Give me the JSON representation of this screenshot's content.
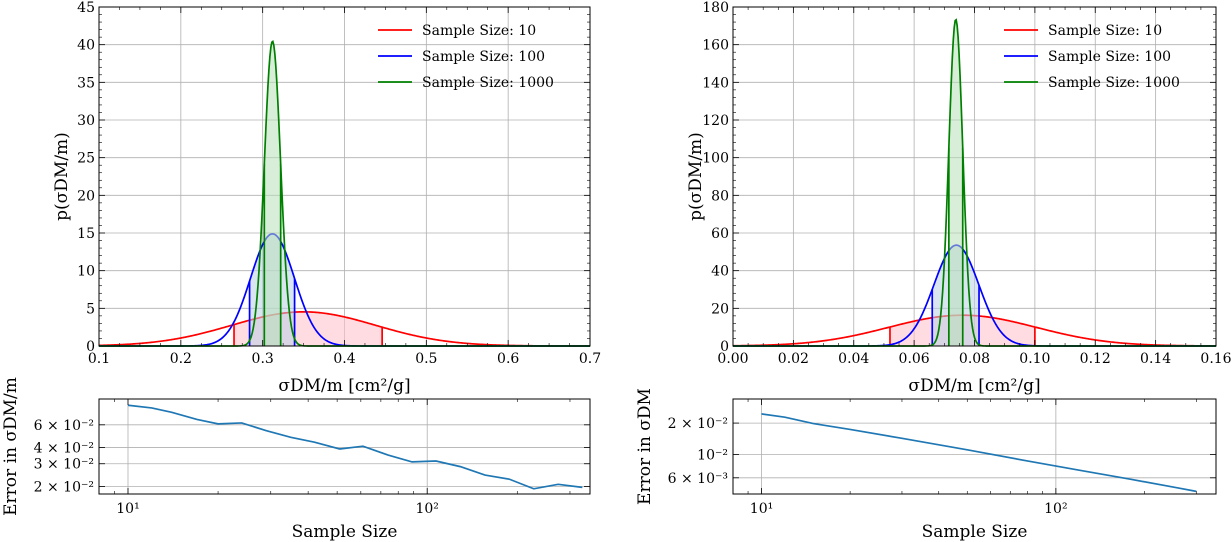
{
  "chart_data": [
    {
      "id": "left-top",
      "type": "line",
      "xlabel": "σDM/m [cm²/g]",
      "ylabel": "p(σDM/m)",
      "xlim": [
        0.1,
        0.7
      ],
      "ylim": [
        0,
        45
      ],
      "xticks": [
        "0.1",
        "0.2",
        "0.3",
        "0.4",
        "0.5",
        "0.6",
        "0.7"
      ],
      "yticks": [
        "0",
        "5",
        "10",
        "15",
        "20",
        "25",
        "30",
        "35",
        "40",
        "45"
      ],
      "grid": true,
      "legend_position": "top-right",
      "series": [
        {
          "name": "Sample Size: 10",
          "color": "#ff0000",
          "fill": "#ffc0c8",
          "mean": 0.35,
          "sd": 0.088,
          "ci": [
            0.265,
            0.446
          ]
        },
        {
          "name": "Sample Size: 100",
          "color": "#0000ff",
          "fill": "#bcd0e8",
          "mean": 0.312,
          "sd": 0.0268,
          "ci": [
            0.284,
            0.339
          ]
        },
        {
          "name": "Sample Size: 1000",
          "color": "#008000",
          "fill": "#b8e0b8",
          "mean": 0.312,
          "sd": 0.00986,
          "ci": [
            0.302,
            0.322
          ]
        }
      ]
    },
    {
      "id": "left-bottom",
      "type": "line",
      "xscale": "log",
      "yscale": "log",
      "xlabel": "Sample Size",
      "ylabel": "Error in σDM/m",
      "xlim": [
        8,
        350
      ],
      "ylim": [
        0.0175,
        0.095
      ],
      "xticks": [
        "10¹",
        "10²"
      ],
      "yticks": [
        "2 × 10⁻²",
        "3 × 10⁻²",
        "4 × 10⁻²",
        "6 × 10⁻²"
      ],
      "grid": true,
      "series": [
        {
          "name": "error",
          "color": "#1f77b4",
          "x": [
            10,
            12,
            14,
            17,
            20,
            24,
            29,
            35,
            42,
            51,
            61,
            74,
            89,
            107,
            129,
            156,
            188,
            227,
            274,
            330
          ],
          "y": [
            0.085,
            0.081,
            0.075,
            0.066,
            0.061,
            0.062,
            0.054,
            0.048,
            0.044,
            0.039,
            0.041,
            0.035,
            0.031,
            0.0315,
            0.0285,
            0.0245,
            0.0228,
            0.0192,
            0.0208,
            0.0197
          ]
        }
      ]
    },
    {
      "id": "right-top",
      "type": "line",
      "xlabel": "σDM/m [cm²/g]",
      "ylabel": "p(σDM/m)",
      "xlim": [
        0.0,
        0.16
      ],
      "ylim": [
        0,
        180
      ],
      "xticks": [
        "0.00",
        "0.02",
        "0.04",
        "0.06",
        "0.08",
        "0.10",
        "0.12",
        "0.14",
        "0.16"
      ],
      "yticks": [
        "0",
        "20",
        "40",
        "60",
        "80",
        "100",
        "120",
        "140",
        "160",
        "180"
      ],
      "grid": true,
      "legend_position": "top-right",
      "series": [
        {
          "name": "Sample Size: 10",
          "color": "#ff0000",
          "fill": "#ffc0c8",
          "mean": 0.076,
          "sd": 0.0244,
          "ci": [
            0.052,
            0.1
          ]
        },
        {
          "name": "Sample Size: 100",
          "color": "#0000ff",
          "fill": "#bcd0e8",
          "mean": 0.074,
          "sd": 0.00745,
          "ci": [
            0.066,
            0.0815
          ]
        },
        {
          "name": "Sample Size: 1000",
          "color": "#008000",
          "fill": "#b8e0b8",
          "mean": 0.0738,
          "sd": 0.0023,
          "ci": [
            0.0715,
            0.0761
          ]
        }
      ]
    },
    {
      "id": "right-bottom",
      "type": "line",
      "xscale": "log",
      "yscale": "log",
      "xlabel": "Sample Size",
      "ylabel": "Error in σDM",
      "xlim": [
        8,
        350
      ],
      "ylim": [
        0.0042,
        0.034
      ],
      "xticks": [
        "10¹",
        "10²"
      ],
      "yticks": [
        "6 × 10⁻³",
        "10⁻²",
        "2 × 10⁻²"
      ],
      "grid": true,
      "series": [
        {
          "name": "error",
          "color": "#1f77b4",
          "x": [
            10,
            12,
            15,
            20,
            30,
            50,
            80,
            120,
            180,
            260,
            300
          ],
          "y": [
            0.0245,
            0.0228,
            0.0198,
            0.0174,
            0.0143,
            0.0111,
            0.0087,
            0.0071,
            0.0058,
            0.0048,
            0.00445
          ]
        }
      ]
    }
  ]
}
